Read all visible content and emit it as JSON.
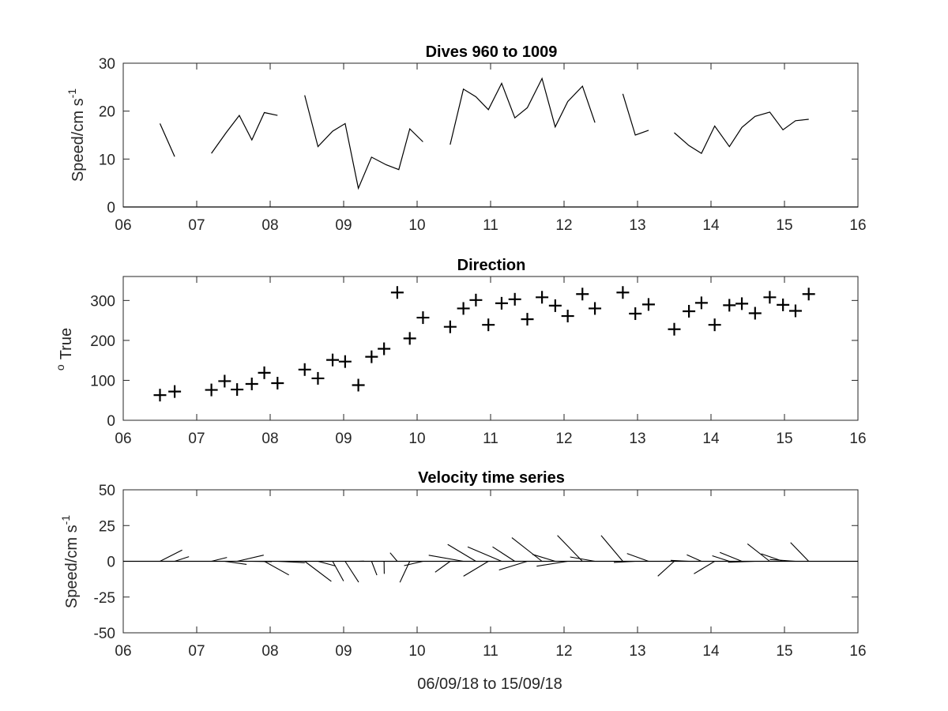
{
  "chart_data": [
    {
      "id": "speed",
      "type": "line",
      "title": "Dives 960 to 1009",
      "ylabel": "Speed/cm s",
      "ylabel_superscript": "-1",
      "xlim": [
        6,
        16
      ],
      "ylim": [
        0,
        30
      ],
      "xticks": [
        "06",
        "07",
        "08",
        "09",
        "10",
        "11",
        "12",
        "13",
        "14",
        "15",
        "16"
      ],
      "yticks": [
        "0",
        "10",
        "20",
        "30"
      ],
      "segments": [
        [
          [
            6.5,
            17.4
          ],
          [
            6.7,
            10.5
          ]
        ],
        [
          [
            7.2,
            11.2
          ],
          [
            7.4,
            15.5
          ],
          [
            7.58,
            19.1
          ],
          [
            7.75,
            14.0
          ],
          [
            7.92,
            19.7
          ],
          [
            8.1,
            19.1
          ]
        ],
        [
          [
            8.47,
            23.3
          ],
          [
            8.65,
            12.6
          ],
          [
            8.85,
            15.8
          ],
          [
            9.02,
            17.4
          ],
          [
            9.2,
            3.9
          ],
          [
            9.38,
            10.4
          ],
          [
            9.58,
            8.8
          ],
          [
            9.75,
            7.8
          ],
          [
            9.9,
            16.3
          ],
          [
            10.08,
            13.6
          ]
        ],
        [
          [
            10.45,
            13.0
          ],
          [
            10.63,
            24.6
          ],
          [
            10.8,
            23.0
          ],
          [
            10.97,
            20.3
          ],
          [
            11.15,
            25.8
          ],
          [
            11.33,
            18.6
          ],
          [
            11.5,
            20.7
          ],
          [
            11.7,
            26.8
          ],
          [
            11.88,
            16.7
          ],
          [
            12.05,
            22.0
          ],
          [
            12.25,
            25.2
          ],
          [
            12.42,
            17.6
          ]
        ],
        [
          [
            12.8,
            23.6
          ],
          [
            12.97,
            15.0
          ],
          [
            13.15,
            16.0
          ]
        ],
        [
          [
            13.5,
            15.5
          ],
          [
            13.7,
            12.8
          ],
          [
            13.87,
            11.2
          ],
          [
            14.05,
            16.9
          ],
          [
            14.25,
            12.6
          ],
          [
            14.42,
            16.6
          ],
          [
            14.6,
            18.9
          ],
          [
            14.8,
            19.8
          ],
          [
            14.98,
            16.1
          ],
          [
            15.15,
            18.0
          ],
          [
            15.33,
            18.3
          ]
        ]
      ]
    },
    {
      "id": "direction",
      "type": "scatter",
      "marker": "+",
      "title": "Direction",
      "ylabel": "True",
      "ylabel_superscript": "o",
      "xlim": [
        6,
        16
      ],
      "ylim": [
        0,
        360
      ],
      "xticks": [
        "06",
        "07",
        "08",
        "09",
        "10",
        "11",
        "12",
        "13",
        "14",
        "15",
        "16"
      ],
      "yticks": [
        "0",
        "100",
        "200",
        "300"
      ],
      "points": [
        [
          6.5,
          63
        ],
        [
          6.7,
          72
        ],
        [
          7.2,
          76
        ],
        [
          7.38,
          98
        ],
        [
          7.55,
          77
        ],
        [
          7.75,
          91
        ],
        [
          7.92,
          119
        ],
        [
          8.1,
          93
        ],
        [
          8.47,
          127
        ],
        [
          8.65,
          105
        ],
        [
          8.85,
          151
        ],
        [
          9.02,
          147
        ],
        [
          9.2,
          88
        ],
        [
          9.38,
          159
        ],
        [
          9.55,
          179
        ],
        [
          9.73,
          320
        ],
        [
          9.9,
          205
        ],
        [
          10.08,
          257
        ],
        [
          10.45,
          234
        ],
        [
          10.63,
          280
        ],
        [
          10.8,
          301
        ],
        [
          10.97,
          239
        ],
        [
          11.15,
          293
        ],
        [
          11.33,
          303
        ],
        [
          11.5,
          253
        ],
        [
          11.7,
          308
        ],
        [
          11.88,
          287
        ],
        [
          12.05,
          261
        ],
        [
          12.25,
          316
        ],
        [
          12.42,
          280
        ],
        [
          12.8,
          320
        ],
        [
          12.97,
          267
        ],
        [
          13.15,
          290
        ],
        [
          13.5,
          228
        ],
        [
          13.7,
          273
        ],
        [
          13.87,
          294
        ],
        [
          14.05,
          239
        ],
        [
          14.25,
          288
        ],
        [
          14.42,
          292
        ],
        [
          14.6,
          268
        ],
        [
          14.8,
          308
        ],
        [
          14.98,
          289
        ],
        [
          15.15,
          274
        ],
        [
          15.33,
          316
        ]
      ]
    },
    {
      "id": "velocity",
      "type": "line",
      "style": "stick-plot",
      "title": "Velocity time series",
      "xlabel": "06/09/18 to 15/09/18",
      "ylabel": "Speed/cm s",
      "ylabel_superscript": "-1",
      "xlim": [
        6,
        16
      ],
      "ylim": [
        -50,
        50
      ],
      "xticks": [
        "06",
        "07",
        "08",
        "09",
        "10",
        "11",
        "12",
        "13",
        "14",
        "15",
        "16"
      ],
      "yticks": [
        "-50",
        "-25",
        "0",
        "25",
        "50"
      ],
      "sticks": [
        [
          6.5,
          17.4,
          63
        ],
        [
          6.7,
          10.5,
          72
        ],
        [
          7.2,
          11.2,
          76
        ],
        [
          7.38,
          15.5,
          98
        ],
        [
          7.55,
          19.1,
          77
        ],
        [
          7.75,
          14.0,
          91
        ],
        [
          7.92,
          19.7,
          119
        ],
        [
          8.1,
          19.1,
          93
        ],
        [
          8.47,
          23.3,
          127
        ],
        [
          8.65,
          12.6,
          105
        ],
        [
          8.85,
          15.8,
          151
        ],
        [
          9.02,
          17.4,
          147
        ],
        [
          9.2,
          3.9,
          88
        ],
        [
          9.38,
          10.4,
          159
        ],
        [
          9.55,
          8.8,
          179
        ],
        [
          9.73,
          7.8,
          320
        ],
        [
          9.9,
          16.3,
          205
        ],
        [
          10.08,
          13.6,
          257
        ],
        [
          10.45,
          13.0,
          234
        ],
        [
          10.63,
          24.6,
          280
        ],
        [
          10.8,
          23.0,
          301
        ],
        [
          10.97,
          20.3,
          239
        ],
        [
          11.15,
          25.8,
          293
        ],
        [
          11.33,
          18.6,
          303
        ],
        [
          11.5,
          20.7,
          253
        ],
        [
          11.7,
          26.8,
          308
        ],
        [
          11.88,
          16.7,
          287
        ],
        [
          12.05,
          22.0,
          261
        ],
        [
          12.25,
          25.2,
          316
        ],
        [
          12.42,
          17.6,
          280
        ],
        [
          12.8,
          23.6,
          320
        ],
        [
          12.97,
          15.0,
          267
        ],
        [
          13.15,
          16.0,
          290
        ],
        [
          13.5,
          15.5,
          228
        ],
        [
          13.7,
          12.8,
          273
        ],
        [
          13.87,
          11.2,
          294
        ],
        [
          14.05,
          16.9,
          239
        ],
        [
          14.25,
          12.6,
          288
        ],
        [
          14.42,
          16.6,
          292
        ],
        [
          14.6,
          18.9,
          268
        ],
        [
          14.8,
          19.8,
          308
        ],
        [
          14.98,
          16.1,
          289
        ],
        [
          15.15,
          18.0,
          274
        ],
        [
          15.33,
          18.3,
          316
        ]
      ]
    }
  ]
}
